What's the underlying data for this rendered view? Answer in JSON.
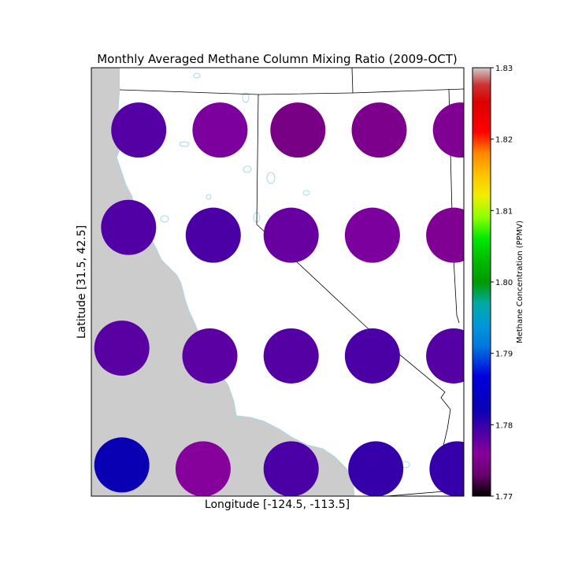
{
  "chart_data": {
    "type": "scatter",
    "title": "Monthly Averaged Methane Column Mixing Ratio (2009-OCT)",
    "xlabel": "Longitude [-124.5, -113.5]",
    "ylabel": "Latitude [31.5, 42.5]",
    "xlim": [
      -124.5,
      -113.5
    ],
    "ylim": [
      31.5,
      42.5
    ],
    "colorbar": {
      "label": "Methane Concentration (PPMV)",
      "range": [
        1.77,
        1.83
      ],
      "ticks": [
        "1.77",
        "1.78",
        "1.79",
        "1.80",
        "1.81",
        "1.82",
        "1.83"
      ],
      "colormap": "nipy_spectral"
    },
    "points": [
      {
        "lon": -123.1,
        "lat": 40.9,
        "value": 1.7785
      },
      {
        "lon": -120.7,
        "lat": 40.9,
        "value": 1.7765
      },
      {
        "lon": -118.4,
        "lat": 40.9,
        "value": 1.7745
      },
      {
        "lon": -116.0,
        "lat": 40.9,
        "value": 1.775
      },
      {
        "lon": -113.6,
        "lat": 40.9,
        "value": 1.7755
      },
      {
        "lon": -123.4,
        "lat": 38.4,
        "value": 1.7787
      },
      {
        "lon": -120.9,
        "lat": 38.2,
        "value": 1.779
      },
      {
        "lon": -118.6,
        "lat": 38.2,
        "value": 1.7775
      },
      {
        "lon": -116.2,
        "lat": 38.2,
        "value": 1.7765
      },
      {
        "lon": -113.8,
        "lat": 38.2,
        "value": 1.7755
      },
      {
        "lon": -123.6,
        "lat": 35.3,
        "value": 1.7783
      },
      {
        "lon": -121.0,
        "lat": 35.1,
        "value": 1.7782
      },
      {
        "lon": -118.6,
        "lat": 35.1,
        "value": 1.7785
      },
      {
        "lon": -116.2,
        "lat": 35.1,
        "value": 1.779
      },
      {
        "lon": -113.8,
        "lat": 35.1,
        "value": 1.7785
      },
      {
        "lon": -123.6,
        "lat": 32.3,
        "value": 1.782
      },
      {
        "lon": -121.2,
        "lat": 32.2,
        "value": 1.776
      },
      {
        "lon": -118.6,
        "lat": 32.2,
        "value": 1.779
      },
      {
        "lon": -116.1,
        "lat": 32.2,
        "value": 1.78
      },
      {
        "lon": -113.7,
        "lat": 32.2,
        "value": 1.78
      }
    ]
  }
}
